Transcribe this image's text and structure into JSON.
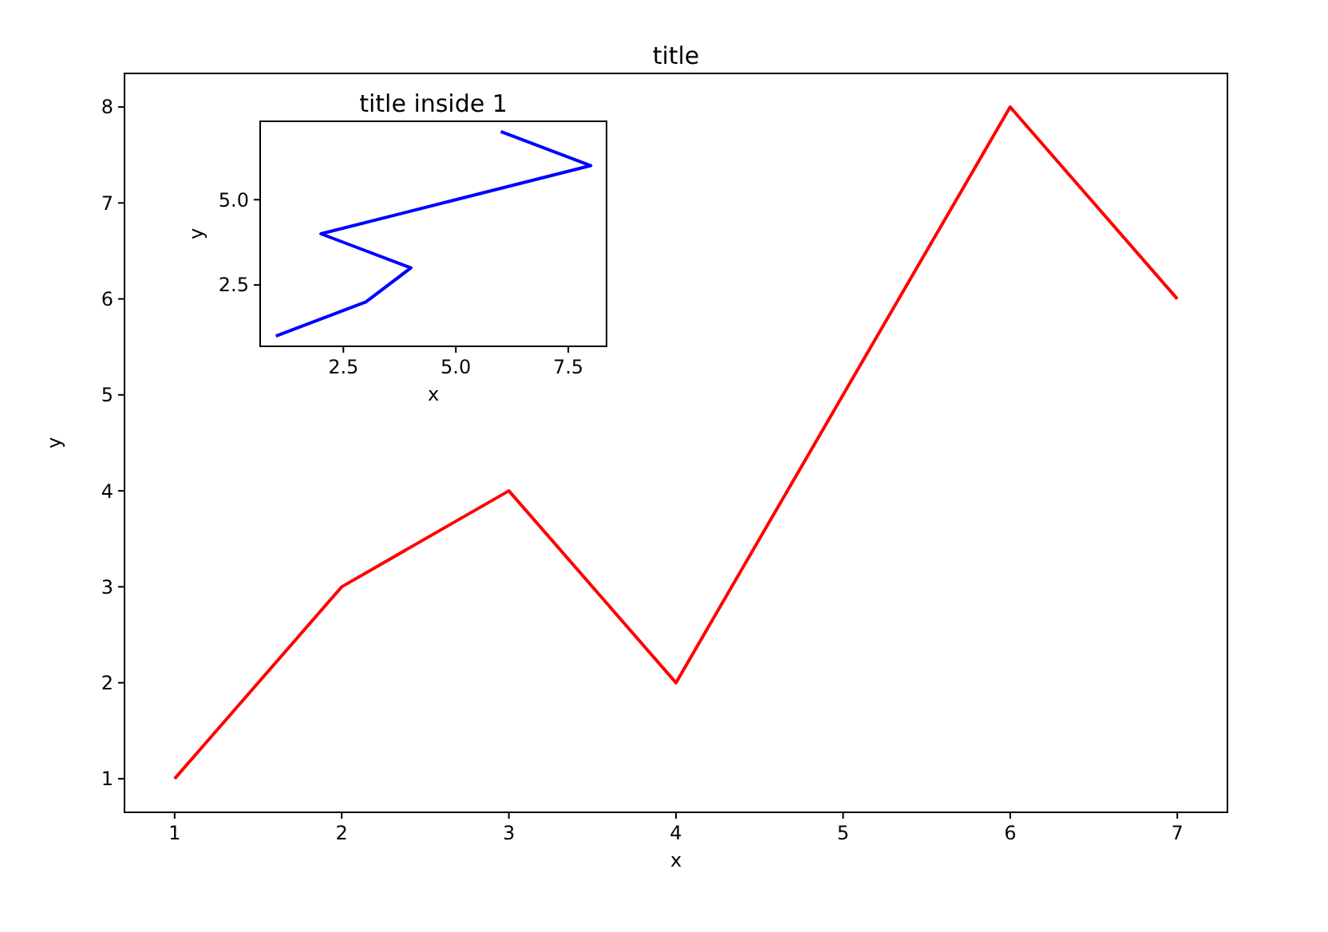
{
  "chart_data": [
    {
      "type": "line",
      "title": "title",
      "xlabel": "x",
      "ylabel": "y",
      "x": [
        1,
        2,
        3,
        4,
        5,
        6,
        7
      ],
      "series": [
        {
          "color": "#ff0000",
          "values": [
            1,
            3,
            4,
            2,
            5,
            8,
            6
          ]
        }
      ],
      "xlim": [
        0.7,
        7.3
      ],
      "ylim": [
        0.65,
        8.35
      ],
      "xticks": [
        1,
        2,
        3,
        4,
        5,
        6,
        7
      ],
      "yticks": [
        1,
        2,
        3,
        4,
        5,
        6,
        7,
        8
      ]
    },
    {
      "type": "line",
      "title": "title inside 1",
      "xlabel": "x",
      "ylabel": "y",
      "x": [
        1,
        3,
        4,
        2,
        5,
        8,
        6
      ],
      "series": [
        {
          "color": "#0000ff",
          "values": [
            1,
            2,
            3,
            4,
            5,
            6,
            7
          ]
        }
      ],
      "xlim": [
        0.65,
        8.35
      ],
      "ylim": [
        0.7,
        7.3
      ],
      "xticks": [
        2.5,
        {
          "value": 5,
          "label": "5.0"
        },
        7.5
      ],
      "yticks": [
        2.5,
        {
          "value": 5,
          "label": "5.0"
        }
      ]
    }
  ]
}
